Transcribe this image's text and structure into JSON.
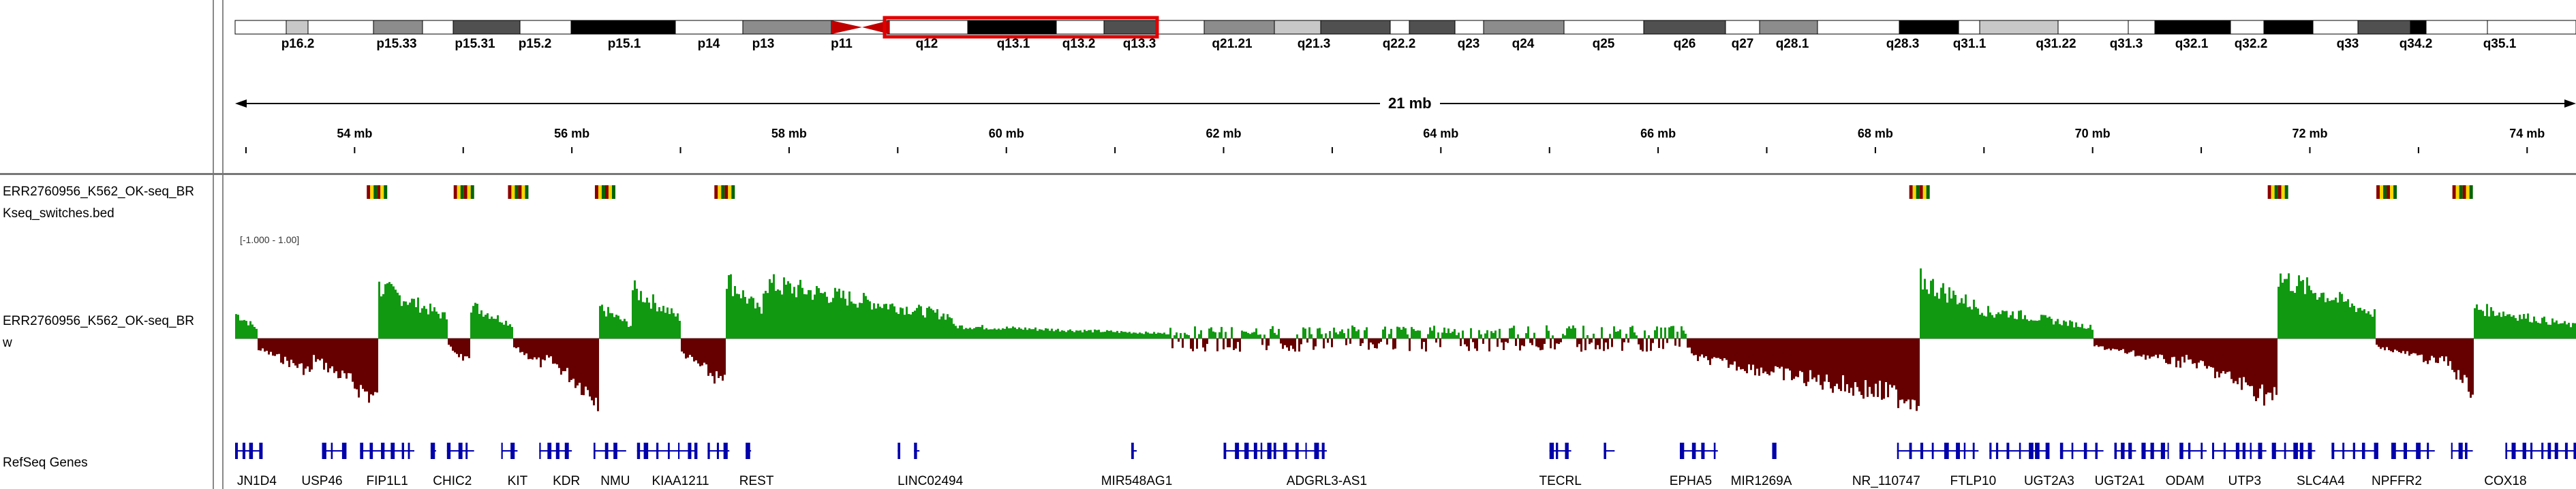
{
  "ideogram": {
    "bands": [
      {
        "name": "p16.2",
        "color": "#ffffff"
      },
      {
        "name": "",
        "color": "#c8c8c8"
      },
      {
        "name": "",
        "color": "#ffffff"
      },
      {
        "name": "p15.33",
        "color": "#8c8c8c"
      },
      {
        "name": "",
        "color": "#ffffff"
      },
      {
        "name": "p15.31",
        "color": "#505050"
      },
      {
        "name": "p15.2",
        "color": "#ffffff"
      },
      {
        "name": "p15.1",
        "color": "#000000"
      },
      {
        "name": "p14",
        "color": "#ffffff"
      },
      {
        "name": "p13",
        "color": "#8c8c8c"
      },
      {
        "name": "p11",
        "color": "#ffffff"
      },
      {
        "name": "q12",
        "color": "#ffffff"
      },
      {
        "name": "q13.1",
        "color": "#000000"
      },
      {
        "name": "q13.2",
        "color": "#ffffff"
      },
      {
        "name": "q13.3",
        "color": "#505050"
      },
      {
        "name": "",
        "color": "#ffffff"
      },
      {
        "name": "q21.21",
        "color": "#8c8c8c"
      },
      {
        "name": "",
        "color": "#c8c8c8"
      },
      {
        "name": "q21.3",
        "color": "#505050"
      },
      {
        "name": "",
        "color": "#ffffff"
      },
      {
        "name": "q22.2",
        "color": "#505050"
      },
      {
        "name": "q23",
        "color": "#ffffff"
      },
      {
        "name": "q24",
        "color": "#8c8c8c"
      },
      {
        "name": "q25",
        "color": "#ffffff"
      },
      {
        "name": "q26",
        "color": "#505050"
      },
      {
        "name": "q27",
        "color": "#ffffff"
      },
      {
        "name": "q28.1",
        "color": "#8c8c8c"
      },
      {
        "name": "",
        "color": "#ffffff"
      },
      {
        "name": "q28.3",
        "color": "#000000"
      },
      {
        "name": "q31.1",
        "color": "#ffffff"
      },
      {
        "name": "",
        "color": "#c8c8c8"
      },
      {
        "name": "q31.22",
        "color": "#ffffff"
      },
      {
        "name": "q31.3",
        "color": "#ffffff"
      },
      {
        "name": "q32.1",
        "color": "#000000"
      },
      {
        "name": "q32.2",
        "color": "#ffffff"
      },
      {
        "name": "",
        "color": "#000000"
      },
      {
        "name": "q33",
        "color": "#ffffff"
      },
      {
        "name": "",
        "color": "#505050"
      },
      {
        "name": "q34.2",
        "color": "#000000"
      },
      {
        "name": "",
        "color": "#ffffff"
      },
      {
        "name": "q35.1",
        "color": "#ffffff"
      }
    ],
    "centromere_color": "#c00000",
    "view_box_color": "#e00000"
  },
  "ruler": {
    "span_label": "21 mb",
    "start_mb": 52.9,
    "end_mb": 74.45,
    "ticks": [
      "54 mb",
      "56 mb",
      "58 mb",
      "60 mb",
      "62 mb",
      "64 mb",
      "66 mb",
      "68 mb",
      "70 mb",
      "72 mb",
      "74 mb"
    ],
    "tick_values": [
      54,
      56,
      58,
      60,
      62,
      64,
      66,
      68,
      70,
      72,
      74
    ]
  },
  "tracks": {
    "bed_name_line1": "ERR2760956_K562_OK-seq_BR",
    "bed_name_line2": "Kseq_switches.bed",
    "bigwig_name_line1": "ERR2760956_K562_OK-seq_BR",
    "bigwig_name_line2": "w",
    "bigwig_range": "[-1.000 - 1.00]",
    "genes_name": "RefSeq Genes",
    "positive_color": "#119911",
    "negative_color": "#660000",
    "gene_color": "#0000aa"
  },
  "bed_features_mb": [
    54.2,
    55.0,
    55.5,
    56.3,
    57.4,
    68.4,
    71.7,
    72.7,
    73.4
  ],
  "genes": [
    {
      "label": "JN1D4",
      "mb": 53.1
    },
    {
      "label": "USP46",
      "mb": 53.7
    },
    {
      "label": "FIP1L1",
      "mb": 54.3
    },
    {
      "label": "CHIC2",
      "mb": 54.9
    },
    {
      "label": "KIT",
      "mb": 55.5
    },
    {
      "label": "KDR",
      "mb": 55.95
    },
    {
      "label": "NMU",
      "mb": 56.4
    },
    {
      "label": "KIAA1211",
      "mb": 57.0
    },
    {
      "label": "REST",
      "mb": 57.7
    },
    {
      "label": "LINC02494",
      "mb": 59.3
    },
    {
      "label": "MIR548AG1",
      "mb": 61.2
    },
    {
      "label": "ADGRL3-AS1",
      "mb": 62.95
    },
    {
      "label": "TECRL",
      "mb": 65.1
    },
    {
      "label": "EPHA5",
      "mb": 66.3
    },
    {
      "label": "MIR1269A",
      "mb": 66.95
    },
    {
      "label": "NR_110747",
      "mb": 68.1
    },
    {
      "label": "FTLP10",
      "mb": 68.9
    },
    {
      "label": "UGT2A3",
      "mb": 69.6
    },
    {
      "label": "UGT2A1",
      "mb": 70.25
    },
    {
      "label": "ODAM",
      "mb": 70.85
    },
    {
      "label": "UTP3",
      "mb": 71.4
    },
    {
      "label": "SLC4A4",
      "mb": 72.1
    },
    {
      "label": "NPFFR2",
      "mb": 72.8
    },
    {
      "label": "COX18",
      "mb": 73.8
    }
  ]
}
